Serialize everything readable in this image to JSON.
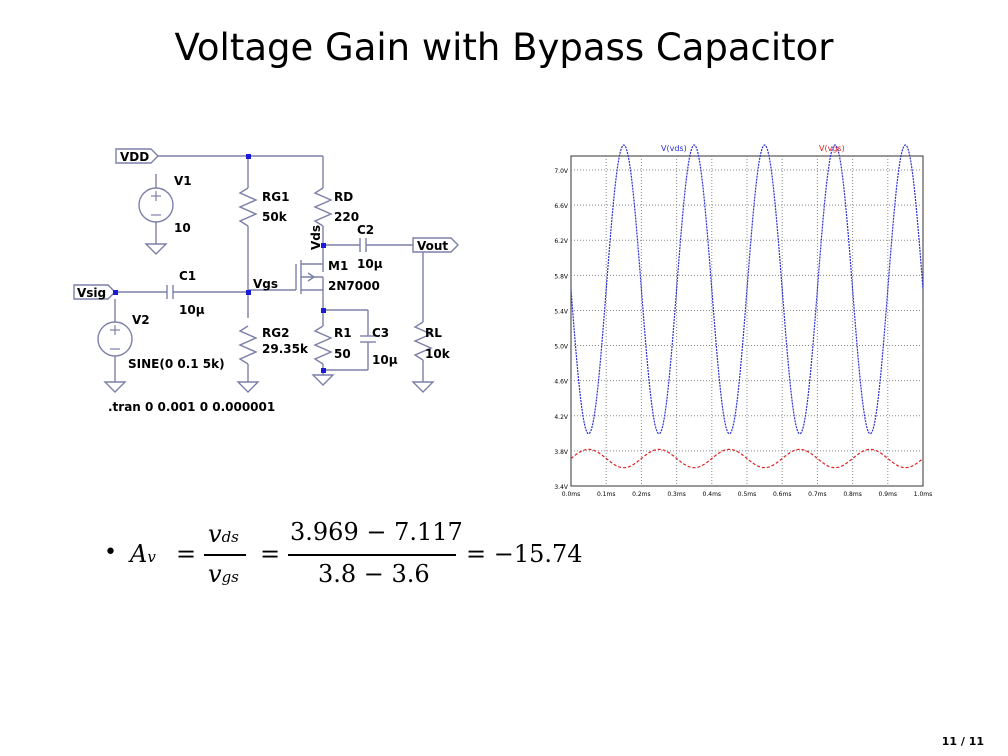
{
  "slide": {
    "title": "Voltage Gain with Bypass Capacitor",
    "page": "11 / 11"
  },
  "schematic": {
    "labels": {
      "vdd": "VDD",
      "v1": "V1",
      "v1_val": "10",
      "rg1": "RG1",
      "rg1_val": "50k",
      "rd": "RD",
      "rd_val": "220",
      "c2": "C2",
      "c2_val": "10µ",
      "vds": "Vds",
      "vout": "Vout",
      "m1": "M1",
      "m1_part": "2N7000",
      "c1": "C1",
      "c1_val": "10µ",
      "vsig": "Vsig",
      "vgs": "Vgs",
      "v2": "V2",
      "rg2": "RG2",
      "rg2_val": "29.35k",
      "r1": "R1",
      "r1_val": "50",
      "c3": "C3",
      "c3_val": "10µ",
      "rl": "RL",
      "rl_val": "10k",
      "sine": "SINE(0 0.1 5k)",
      "tran": ".tran 0 0.001 0 0.000001"
    }
  },
  "chart_data": {
    "type": "line",
    "legend": [
      "V(vds)",
      "V(vgs)"
    ],
    "series_colors": [
      "#2a2fd0",
      "#e02020"
    ],
    "y_ticks": [
      "7.0V",
      "6.6V",
      "6.2V",
      "5.8V",
      "5.4V",
      "5.0V",
      "4.6V",
      "4.2V",
      "3.8V",
      "3.4V"
    ],
    "x_ticks": [
      "0.0ms",
      "0.1ms",
      "0.2ms",
      "0.3ms",
      "0.4ms",
      "0.5ms",
      "0.6ms",
      "0.7ms",
      "0.8ms",
      "0.9ms",
      "1.0ms"
    ],
    "ylim": [
      3.4,
      7.0
    ],
    "xlim": [
      0,
      1.0
    ],
    "grid": true,
    "series": [
      {
        "name": "V(vds)",
        "freq_khz": 5,
        "approx_max": 7.12,
        "approx_min": 3.97
      },
      {
        "name": "V(vgs)",
        "freq_khz": 5,
        "approx_max": 3.8,
        "approx_min": 3.6
      }
    ]
  },
  "formula": {
    "bullet": "•",
    "lhs": "A",
    "lhs_sub": "v",
    "eq": "=",
    "frac1_num": "v",
    "frac1_num_sub": "ds",
    "frac1_den": "v",
    "frac1_den_sub": "gs",
    "frac2_num": "3.969 − 7.117",
    "frac2_den": "3.8 − 3.6",
    "result": "= −15.74"
  }
}
